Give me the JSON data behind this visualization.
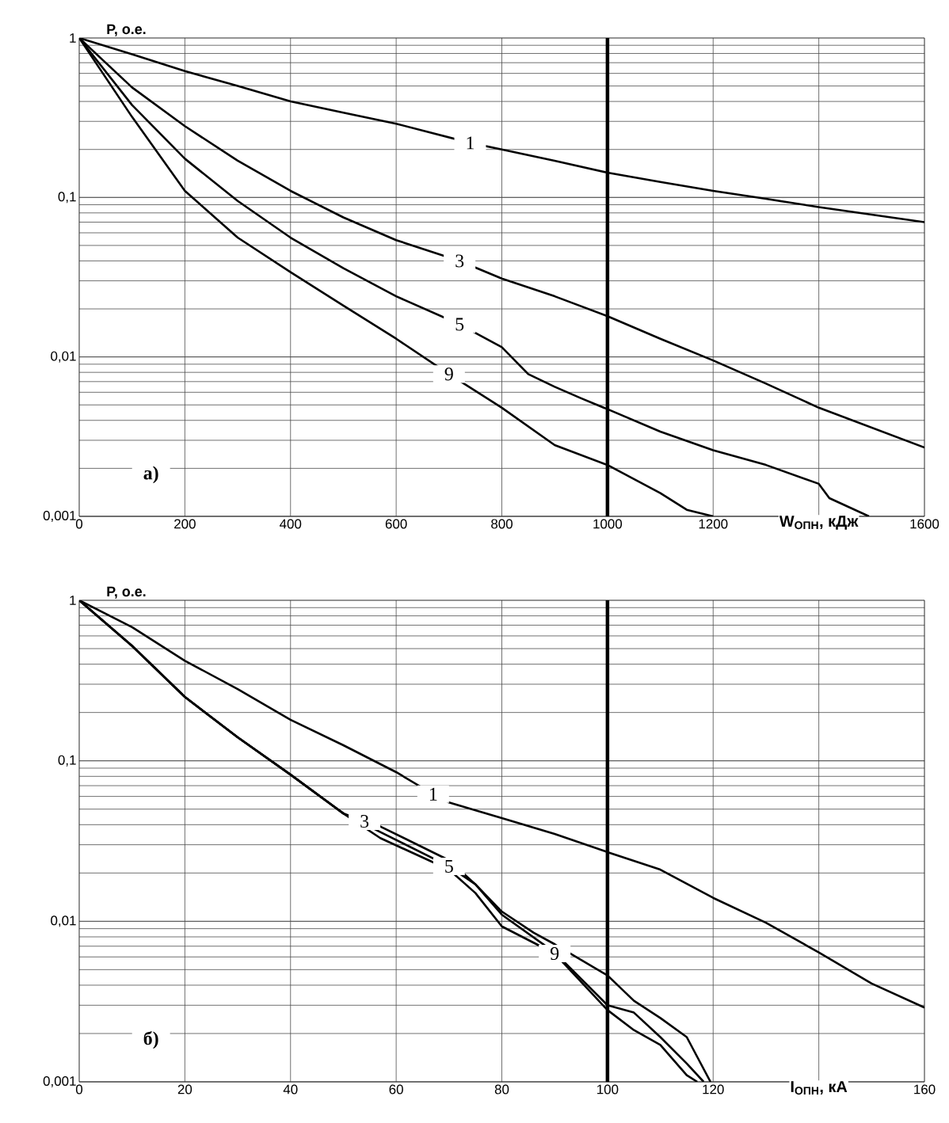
{
  "chart_data": [
    {
      "type": "line",
      "xlabel": "W$_{ОПН}$, кДж",
      "ylabel": "P, о.е.",
      "log": "y",
      "grid": true,
      "legend": false,
      "xlim": [
        0,
        1600
      ],
      "xticks": [
        0,
        200,
        400,
        600,
        800,
        1000,
        1200,
        {
          "value": 1400,
          "label": null
        },
        1600
      ],
      "ylim": [
        0.001,
        1
      ],
      "yticks": [
        {
          "value": 0.001,
          "label": "0,001"
        },
        {
          "value": 0.01,
          "label": "0,01"
        },
        {
          "value": 0.1,
          "label": "0,1"
        },
        {
          "value": 1,
          "label": "1"
        }
      ],
      "ref_lines": [
        {
          "axis": "x",
          "value": 1000,
          "color": "#000000"
        }
      ],
      "annotations": [
        "а)"
      ],
      "series": [
        {
          "name": "1",
          "color": "#000000",
          "x": [
            0,
            100,
            200,
            300,
            400,
            500,
            600,
            740,
            800,
            900,
            1000,
            1100,
            1200,
            1300,
            1400,
            1500,
            1600
          ],
          "values": [
            1,
            0.79,
            0.62,
            0.5,
            0.4,
            0.34,
            0.29,
            0.22,
            0.2,
            0.17,
            0.143,
            0.125,
            0.11,
            0.098,
            0.087,
            0.078,
            0.07
          ]
        },
        {
          "name": "3",
          "color": "#000000",
          "x": [
            0,
            100,
            200,
            300,
            400,
            500,
            600,
            720,
            800,
            900,
            1000,
            1100,
            1200,
            1300,
            1400,
            1500,
            1600
          ],
          "values": [
            1,
            0.49,
            0.28,
            0.17,
            0.11,
            0.075,
            0.054,
            0.04,
            0.031,
            0.024,
            0.018,
            0.013,
            0.0095,
            0.0068,
            0.0048,
            0.0036,
            0.0027
          ]
        },
        {
          "name": "5",
          "color": "#000000",
          "x": [
            0,
            100,
            200,
            300,
            400,
            500,
            600,
            720,
            800,
            850,
            900,
            950,
            1000,
            1100,
            1200,
            1300,
            1400,
            1420,
            1495
          ],
          "values": [
            1,
            0.38,
            0.175,
            0.095,
            0.056,
            0.036,
            0.024,
            0.016,
            0.0115,
            0.0078,
            0.0065,
            0.0055,
            0.0047,
            0.0034,
            0.0026,
            0.0021,
            0.0016,
            0.0013,
            0.001
          ]
        },
        {
          "name": "9",
          "color": "#000000",
          "x": [
            0,
            100,
            200,
            300,
            400,
            500,
            600,
            700,
            800,
            900,
            1000,
            1100,
            1150,
            1200
          ],
          "values": [
            1,
            0.32,
            0.11,
            0.056,
            0.034,
            0.021,
            0.013,
            0.0078,
            0.0048,
            0.0028,
            0.0021,
            0.0014,
            0.0011,
            0.001
          ]
        }
      ]
    },
    {
      "type": "line",
      "xlabel": "I$_{ОПН}$, кА",
      "ylabel": "P, о.е.",
      "log": "y",
      "grid": true,
      "legend": false,
      "xlim": [
        0,
        160
      ],
      "xticks": [
        0,
        20,
        40,
        60,
        80,
        100,
        120,
        {
          "value": 140,
          "label": null
        },
        160
      ],
      "ylim": [
        0.001,
        1
      ],
      "yticks": [
        {
          "value": 0.001,
          "label": "0,001"
        },
        {
          "value": 0.01,
          "label": "0,01"
        },
        {
          "value": 0.1,
          "label": "0,1"
        },
        {
          "value": 1,
          "label": "1"
        }
      ],
      "ref_lines": [
        {
          "axis": "x",
          "value": 100,
          "color": "#000000"
        }
      ],
      "annotations": [
        "б)"
      ],
      "series": [
        {
          "name": "1",
          "color": "#000000",
          "x": [
            0,
            10,
            20,
            30,
            40,
            50,
            60,
            67,
            70,
            80,
            90,
            100,
            110,
            120,
            130,
            140,
            150,
            160
          ],
          "values": [
            1,
            0.68,
            0.42,
            0.28,
            0.18,
            0.125,
            0.085,
            0.062,
            0.055,
            0.044,
            0.035,
            0.027,
            0.021,
            0.014,
            0.0098,
            0.0064,
            0.0041,
            0.0029
          ]
        },
        {
          "name": "3",
          "color": "#000000",
          "x": [
            0,
            10,
            20,
            30,
            40,
            50,
            54,
            57,
            70,
            75,
            80,
            86,
            90,
            100,
            105,
            110,
            115,
            119.5
          ],
          "values": [
            1,
            0.52,
            0.25,
            0.14,
            0.082,
            0.047,
            0.042,
            0.039,
            0.024,
            0.017,
            0.0115,
            0.0085,
            0.0072,
            0.0046,
            0.0032,
            0.0025,
            0.0019,
            0.001
          ]
        },
        {
          "name": "5",
          "color": "#000000",
          "x": [
            0,
            10,
            20,
            30,
            40,
            50,
            57,
            70,
            75,
            80,
            90,
            100,
            105,
            110,
            115,
            118.2
          ],
          "values": [
            1,
            0.52,
            0.25,
            0.14,
            0.082,
            0.047,
            0.036,
            0.022,
            0.017,
            0.011,
            0.0064,
            0.003,
            0.0027,
            0.0019,
            0.0013,
            0.001
          ]
        },
        {
          "name": "9",
          "color": "#000000",
          "x": [
            0,
            10,
            20,
            30,
            40,
            50,
            57,
            70,
            75,
            80,
            90,
            100,
            105,
            110,
            115,
            117
          ],
          "values": [
            1,
            0.52,
            0.25,
            0.14,
            0.082,
            0.047,
            0.033,
            0.021,
            0.015,
            0.0093,
            0.0063,
            0.0028,
            0.0021,
            0.0017,
            0.0011,
            0.001
          ]
        }
      ]
    }
  ]
}
